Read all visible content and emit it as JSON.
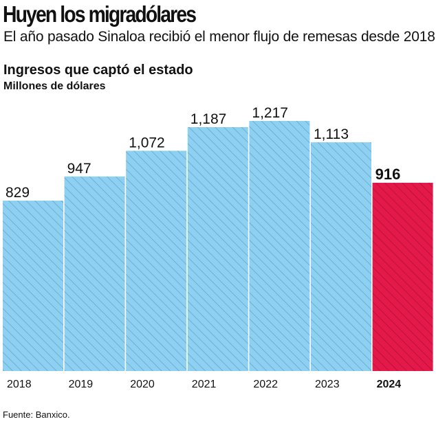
{
  "header": {
    "title": "Huyen los migradólares",
    "subtitle": "El año pasado Sinaloa recibió el menor flujo de remesas desde 2018."
  },
  "chart_data": {
    "type": "bar",
    "title": "Ingresos que captó el estado",
    "ylabel": "Millones de dólares",
    "categories": [
      "2018",
      "2019",
      "2020",
      "2021",
      "2022",
      "2023",
      "2024"
    ],
    "values": [
      829,
      947,
      1072,
      1187,
      1217,
      1113,
      916
    ],
    "data_labels": [
      "829",
      "947",
      "1,072",
      "1,187",
      "1,217",
      "1,113",
      "916"
    ],
    "ylim": [
      0,
      1217
    ],
    "grid": false,
    "highlight_index": 6,
    "colors": {
      "bar": "#8dd0f1",
      "bar_hatch": "#5c9fc2",
      "highlight": "#e5184a",
      "highlight_hatch": "#9b1434"
    }
  },
  "footer": {
    "source": "Fuente: Banxico."
  }
}
